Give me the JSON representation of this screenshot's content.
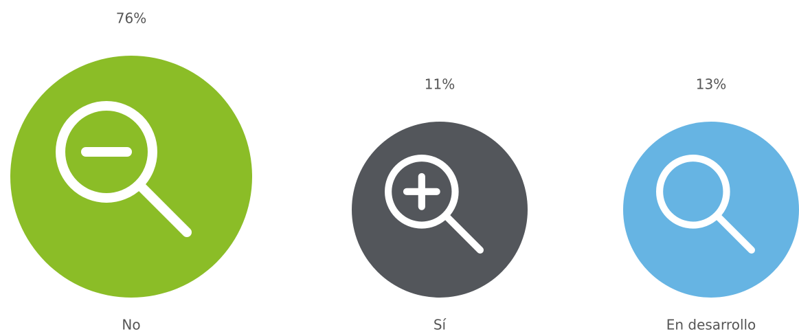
{
  "chart_data": {
    "type": "bubble",
    "categories": [
      "No",
      "Sí",
      "En desarrollo"
    ],
    "values": [
      76,
      11,
      13
    ],
    "value_labels": [
      "76%",
      "11%",
      "13%"
    ],
    "colors": [
      "#8bbd27",
      "#53565b",
      "#66b4e3"
    ]
  }
}
